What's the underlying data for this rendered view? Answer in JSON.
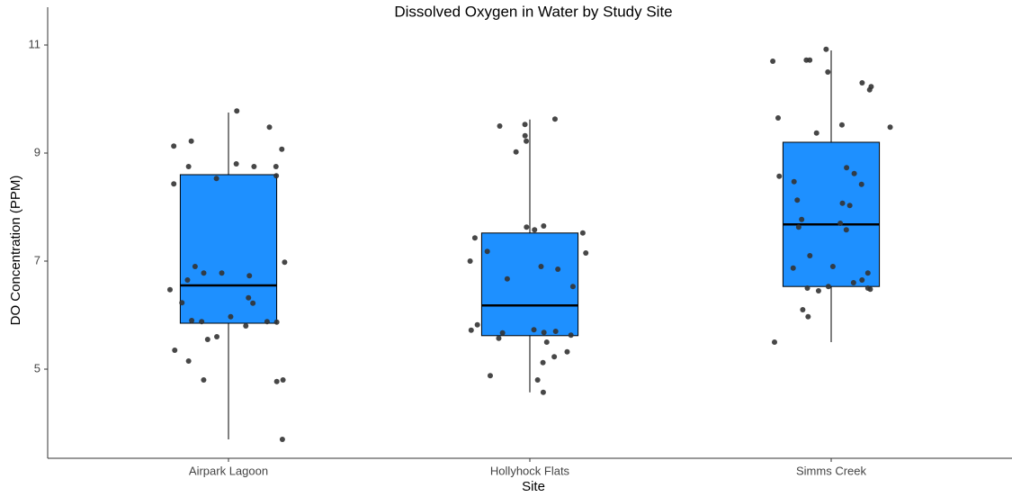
{
  "chart_data": {
    "type": "box",
    "title": "Dissolved Oxygen in Water by Study Site",
    "x_label": "Site",
    "y_label": "DO Concentration (PPM)",
    "categories": [
      "Airpark Lagoon",
      "Hollyhock Flats",
      "Simms Creek"
    ],
    "min": [
      3.7,
      4.57,
      5.5
    ],
    "q1": [
      5.85,
      5.62,
      6.53
    ],
    "median": [
      6.55,
      6.18,
      7.68
    ],
    "q3": [
      8.6,
      7.52,
      9.2
    ],
    "max": [
      9.75,
      9.62,
      10.9
    ],
    "points": [
      [
        9.78,
        9.48,
        9.22,
        9.13,
        9.07,
        8.8,
        8.75,
        8.75,
        8.75,
        8.58,
        8.53,
        8.43,
        6.98,
        6.9,
        6.78,
        6.78,
        6.73,
        6.65,
        6.47,
        6.32,
        6.23,
        6.22,
        5.97,
        5.9,
        5.88,
        5.88,
        5.87,
        5.8,
        5.6,
        5.55,
        5.35,
        5.15,
        4.8,
        4.8,
        4.77,
        3.7
      ],
      [
        9.63,
        9.53,
        9.5,
        9.32,
        9.22,
        9.02,
        7.65,
        7.63,
        7.58,
        7.52,
        7.43,
        7.18,
        7.15,
        7.0,
        6.9,
        6.85,
        6.67,
        6.53,
        5.82,
        5.73,
        5.72,
        5.7,
        5.68,
        5.67,
        5.63,
        5.57,
        5.5,
        5.32,
        5.23,
        5.12,
        4.88,
        4.8,
        4.57
      ],
      [
        10.92,
        10.72,
        10.72,
        10.7,
        10.5,
        10.3,
        10.23,
        10.17,
        9.65,
        9.52,
        9.48,
        9.37,
        8.73,
        8.62,
        8.57,
        8.47,
        8.42,
        8.13,
        8.07,
        8.03,
        7.77,
        7.7,
        7.63,
        7.58,
        7.1,
        6.9,
        6.87,
        6.78,
        6.65,
        6.6,
        6.53,
        6.5,
        6.5,
        6.48,
        6.45,
        6.1,
        5.97,
        5.5
      ]
    ],
    "color": "#1e90ff",
    "point_color": "#333333",
    "ylim": [
      3.35,
      11.7
    ],
    "yticks": [
      5,
      7,
      9,
      11
    ],
    "grid": false
  }
}
